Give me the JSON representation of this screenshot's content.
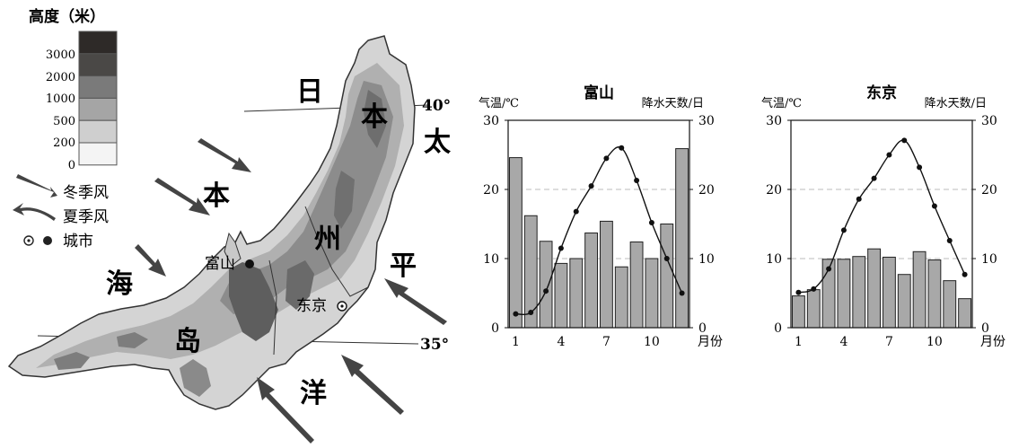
{
  "map": {
    "legend": {
      "title": "高度（米）",
      "levels": [
        "3000",
        "2000",
        "1000",
        "500",
        "200",
        "0"
      ],
      "colors": [
        "#2e2a28",
        "#4a4846",
        "#7a7a7a",
        "#a5a5a5",
        "#cfcfcf",
        "#f4f4f4"
      ]
    },
    "keys": {
      "winter": "冬季风",
      "summer": "夏季风",
      "city": "城市"
    },
    "sea": {
      "c1": "日",
      "c2": "本",
      "c3": "海"
    },
    "ocean": {
      "c1": "太",
      "c2": "平",
      "c3": "洋"
    },
    "island": {
      "c1": "本",
      "c2": "州",
      "c3": "岛"
    },
    "cities": {
      "toyama": "富山",
      "tokyo": "东京"
    },
    "latitudes": {
      "north": "40°",
      "south": "35°"
    }
  },
  "chart_data": [
    {
      "type": "bar+line",
      "title": "富山",
      "ylabel_left": "气温/℃",
      "ylabel_right": "降水天数/日",
      "xlabel": "月份",
      "ylim": [
        0,
        30
      ],
      "yticks": [
        "0",
        "10",
        "20",
        "30"
      ],
      "xticks": [
        "1",
        "4",
        "7",
        "10"
      ],
      "months": [
        1,
        2,
        3,
        4,
        5,
        6,
        7,
        8,
        9,
        10,
        11,
        12
      ],
      "precip_days": [
        24.6,
        16.2,
        12.5,
        9.3,
        10.0,
        13.7,
        15.4,
        8.8,
        12.4,
        10.0,
        15.0,
        25.9
      ],
      "temperature": [
        2.0,
        2.2,
        5.3,
        11.5,
        16.8,
        20.5,
        24.5,
        26.0,
        21.3,
        15.2,
        10.0,
        5.0
      ]
    },
    {
      "type": "bar+line",
      "title": "东京",
      "ylabel_left": "气温/℃",
      "ylabel_right": "降水天数/日",
      "xlabel": "月份",
      "ylim": [
        0,
        30
      ],
      "yticks": [
        "0",
        "10",
        "20",
        "30"
      ],
      "xticks": [
        "1",
        "4",
        "7",
        "10"
      ],
      "months": [
        1,
        2,
        3,
        4,
        5,
        6,
        7,
        8,
        9,
        10,
        11,
        12
      ],
      "precip_days": [
        4.6,
        5.5,
        9.9,
        9.9,
        10.3,
        11.4,
        10.2,
        7.7,
        11.0,
        9.8,
        6.8,
        4.2
      ],
      "temperature": [
        5.1,
        5.6,
        8.5,
        14.1,
        18.6,
        21.6,
        25.0,
        27.1,
        23.2,
        17.6,
        12.6,
        7.7
      ]
    }
  ]
}
